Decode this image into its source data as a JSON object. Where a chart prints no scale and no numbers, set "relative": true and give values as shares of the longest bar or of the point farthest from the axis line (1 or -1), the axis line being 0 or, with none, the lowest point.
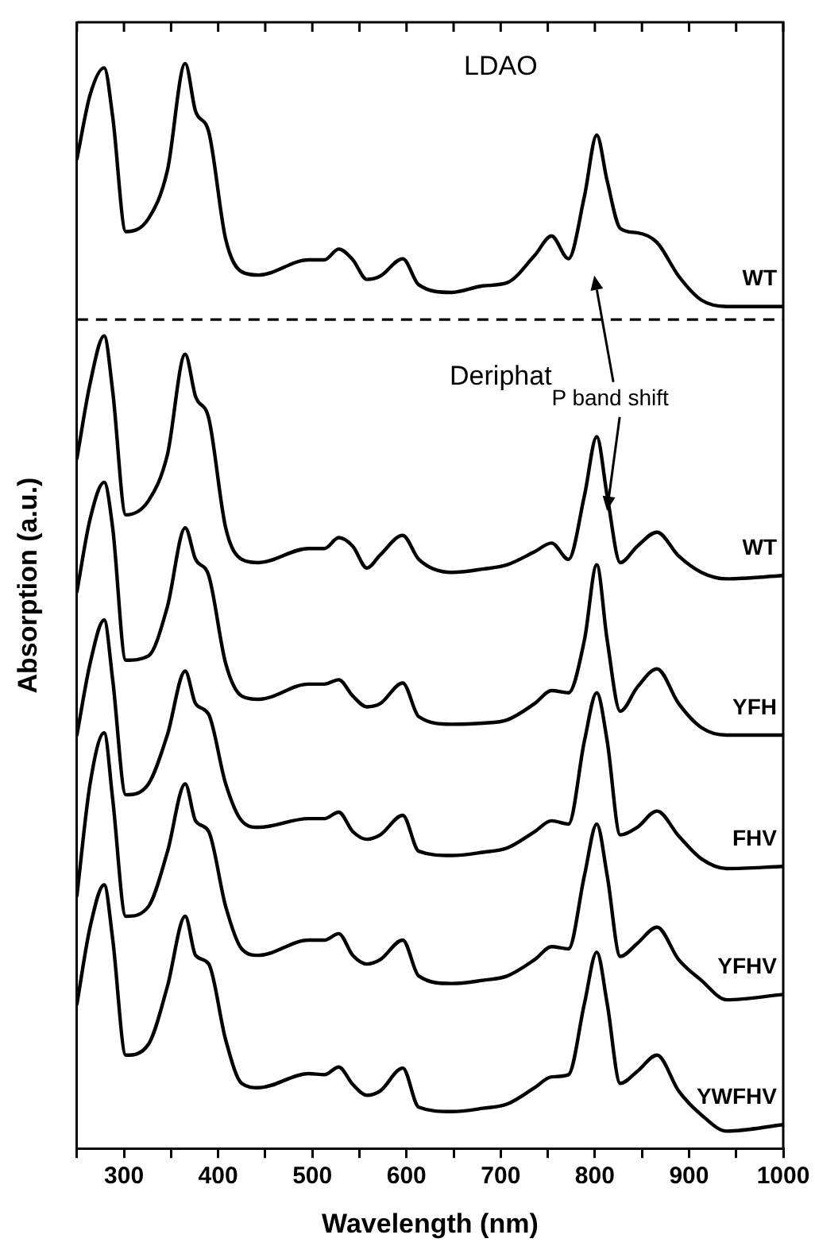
{
  "chart_data": {
    "type": "line",
    "xlabel": "Wavelength (nm)",
    "ylabel": "Absorption (a.u.)",
    "relative": true,
    "xlim": [
      250,
      1000
    ],
    "xticks": [
      {
        "value": 250,
        "label": null
      },
      300,
      {
        "value": 350,
        "label": null
      },
      400,
      {
        "value": 450,
        "label": null
      },
      500,
      {
        "value": 550,
        "label": null
      },
      600,
      {
        "value": 650,
        "label": null
      },
      700,
      {
        "value": 750,
        "label": null
      },
      800,
      {
        "value": 850,
        "label": null
      },
      900,
      {
        "value": 950,
        "label": null
      },
      1000
    ],
    "tick_labels": "x",
    "grid": false,
    "legend": false,
    "marker": "none",
    "line_style": "solid",
    "annotations": [
      "LDAO",
      "Deriphat",
      "P band shift"
    ],
    "ref_lines": [
      {
        "axis": "y",
        "value": 0.764,
        "line_style": "dashed",
        "color": "#000000"
      }
    ],
    "x": [
      250,
      264,
      279,
      288,
      302,
      326,
      346,
      365,
      376,
      390,
      408,
      425,
      443,
      496,
      513,
      528,
      543,
      558,
      572,
      596,
      613,
      648,
      681,
      707,
      736,
      754,
      772,
      789,
      802,
      813,
      827,
      845,
      866,
      889,
      913,
      940,
      1000
    ],
    "series": [
      {
        "name": "WT",
        "color": "#000000",
        "values": [
          0.912,
          0.971,
          0.996,
          0.951,
          0.845,
          0.857,
          0.901,
          1,
          0.956,
          0.937,
          0.838,
          0.808,
          0.805,
          0.819,
          0.819,
          0.829,
          0.819,
          0.801,
          0.804,
          0.82,
          0.796,
          0.789,
          0.795,
          0.798,
          0.823,
          0.841,
          0.82,
          0.878,
          0.934,
          0.892,
          0.848,
          0.844,
          0.835,
          0.804,
          0.782,
          0.776,
          0.776
        ]
      },
      {
        "name": "WT",
        "color": "#000000",
        "values": [
          0.636,
          0.705,
          0.749,
          0.698,
          0.584,
          0.597,
          0.639,
          0.732,
          0.693,
          0.673,
          0.572,
          0.543,
          0.54,
          0.553,
          0.553,
          0.563,
          0.555,
          0.535,
          0.547,
          0.565,
          0.543,
          0.531,
          0.534,
          0.538,
          0.55,
          0.558,
          0.543,
          0.602,
          0.656,
          0.602,
          0.54,
          0.555,
          0.568,
          0.546,
          0.531,
          0.525,
          0.528
        ]
      },
      {
        "name": "YFH",
        "color": "#000000",
        "values": [
          0.513,
          0.58,
          0.614,
          0.572,
          0.45,
          0.454,
          0.499,
          0.572,
          0.543,
          0.528,
          0.447,
          0.417,
          0.414,
          0.428,
          0.428,
          0.432,
          0.417,
          0.407,
          0.41,
          0.429,
          0.398,
          0.391,
          0.392,
          0.395,
          0.41,
          0.422,
          0.42,
          0.469,
          0.538,
          0.469,
          0.403,
          0.425,
          0.442,
          0.41,
          0.388,
          0.381,
          0.381
        ]
      },
      {
        "name": "FHV",
        "color": "#000000",
        "values": [
          0.381,
          0.447,
          0.487,
          0.432,
          0.326,
          0.336,
          0.381,
          0.44,
          0.41,
          0.4,
          0.336,
          0.302,
          0.296,
          0.304,
          0.304,
          0.31,
          0.292,
          0.285,
          0.289,
          0.307,
          0.274,
          0.27,
          0.273,
          0.277,
          0.292,
          0.302,
          0.299,
          0.376,
          0.42,
          0.376,
          0.289,
          0.296,
          0.311,
          0.288,
          0.267,
          0.258,
          0.26
        ]
      },
      {
        "name": "YFHV",
        "color": "#000000",
        "values": [
          0.233,
          0.336,
          0.383,
          0.322,
          0.214,
          0.223,
          0.273,
          0.336,
          0.302,
          0.292,
          0.223,
          0.184,
          0.178,
          0.192,
          0.192,
          0.198,
          0.178,
          0.17,
          0.174,
          0.192,
          0.159,
          0.152,
          0.155,
          0.159,
          0.174,
          0.186,
          0.184,
          0.252,
          0.299,
          0.252,
          0.177,
          0.189,
          0.204,
          0.174,
          0.155,
          0.137,
          0.142
        ]
      },
      {
        "name": "YWFHV",
        "color": "#000000",
        "values": [
          0.133,
          0.204,
          0.243,
          0.193,
          0.086,
          0.096,
          0.149,
          0.214,
          0.178,
          0.17,
          0.1,
          0.06,
          0.056,
          0.069,
          0.068,
          0.075,
          0.059,
          0.049,
          0.053,
          0.074,
          0.038,
          0.034,
          0.037,
          0.041,
          0.056,
          0.066,
          0.068,
          0.134,
          0.181,
          0.134,
          0.06,
          0.071,
          0.086,
          0.053,
          0.031,
          0.016,
          0.022
        ]
      }
    ]
  }
}
